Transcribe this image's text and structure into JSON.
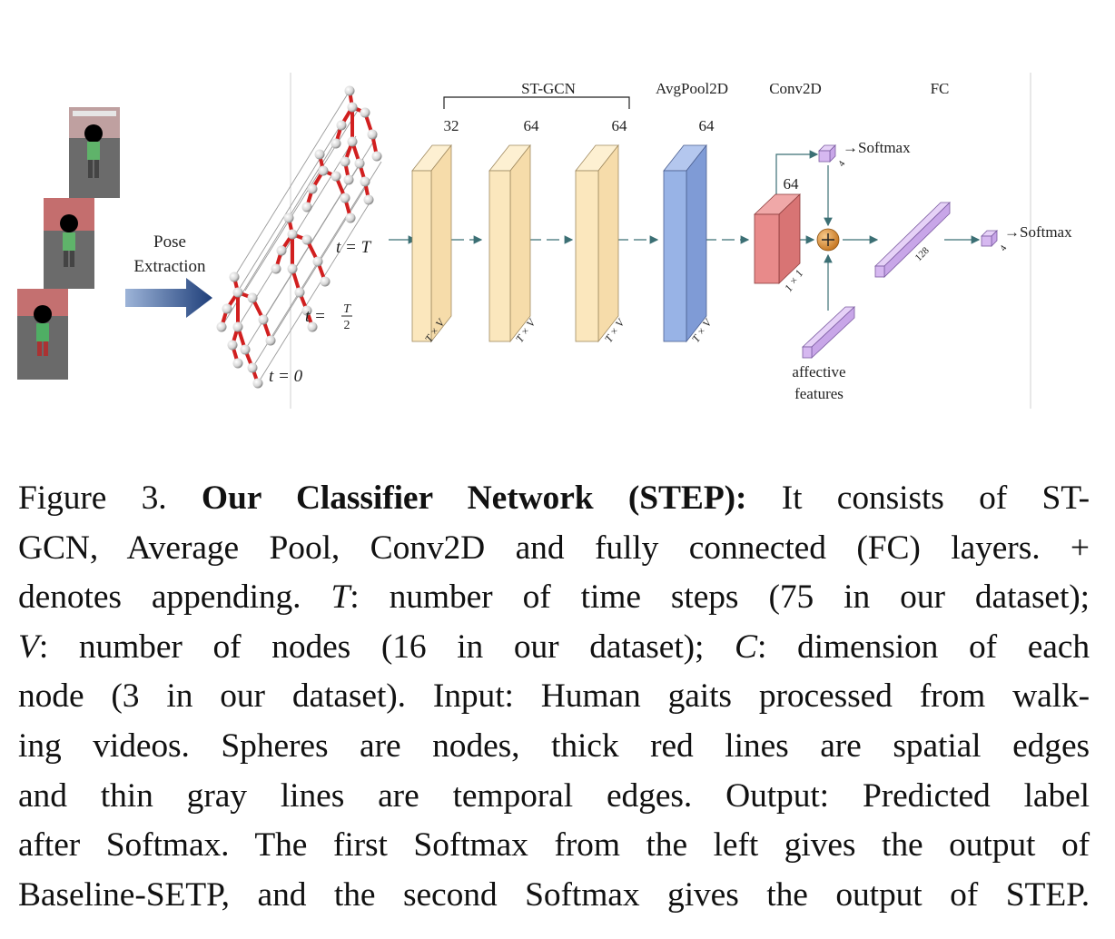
{
  "figure": {
    "pose_extraction": [
      "Pose",
      "Extraction"
    ],
    "time_labels": {
      "top": "t = T",
      "mid_prefix": "t =",
      "mid_num": "T",
      "mid_den": "2",
      "bottom": "t = 0"
    },
    "stgcn_bracket_label": "ST-GCN",
    "layer_headers": [
      "AvgPool2D",
      "Conv2D",
      "FC"
    ],
    "block_channels": [
      "32",
      "64",
      "64",
      "64"
    ],
    "block_depth_label": "T × V",
    "conv_channels": "64",
    "conv_depth_label": "1 × 1",
    "softmax_label": "→Softmax",
    "fc_small_dim": "4",
    "fc_dim": "128",
    "affective": [
      "affective",
      "features"
    ],
    "colors": {
      "stgcn_fill": "#fbe7bd",
      "avgpool_fill": "#98b3e6",
      "conv_fill": "#e88a8a",
      "fc_fill": "#d6b8f0",
      "arrow": "#3b6f74",
      "spatial_edge": "#d11f1f",
      "temporal_edge": "#9a9a9a",
      "plus_fill": "#e49a3c",
      "pose_arrow": "#2d4f8a"
    }
  },
  "caption": {
    "lines": [
      [
        {
          "t": "Figure 3. "
        },
        {
          "t": "Our Classifier Network (STEP):",
          "b": true
        },
        {
          "t": " It consists of ST-"
        }
      ],
      [
        {
          "t": "GCN, Average Pool, Conv2D and fully connected (FC) layers. +"
        }
      ],
      [
        {
          "t": "denotes appending. "
        },
        {
          "t": "T",
          "i": true
        },
        {
          "t": ": number of time steps (75 in our dataset);"
        }
      ],
      [
        {
          "t": "V",
          "i": true
        },
        {
          "t": ": number of nodes (16 in our dataset); "
        },
        {
          "t": "C",
          "i": true
        },
        {
          "t": ": dimension of each"
        }
      ],
      [
        {
          "t": "node (3 in our dataset). Input: Human gaits processed from walk-"
        }
      ],
      [
        {
          "t": "ing videos. Spheres are nodes, thick red lines are spatial edges"
        }
      ],
      [
        {
          "t": "and thin gray lines are temporal edges. Output: Predicted label"
        }
      ],
      [
        {
          "t": "after Softmax. The first Softmax from the left gives the output of"
        }
      ],
      [
        {
          "t": "Baseline-SETP, and the second Softmax gives the output of STEP."
        }
      ]
    ]
  }
}
